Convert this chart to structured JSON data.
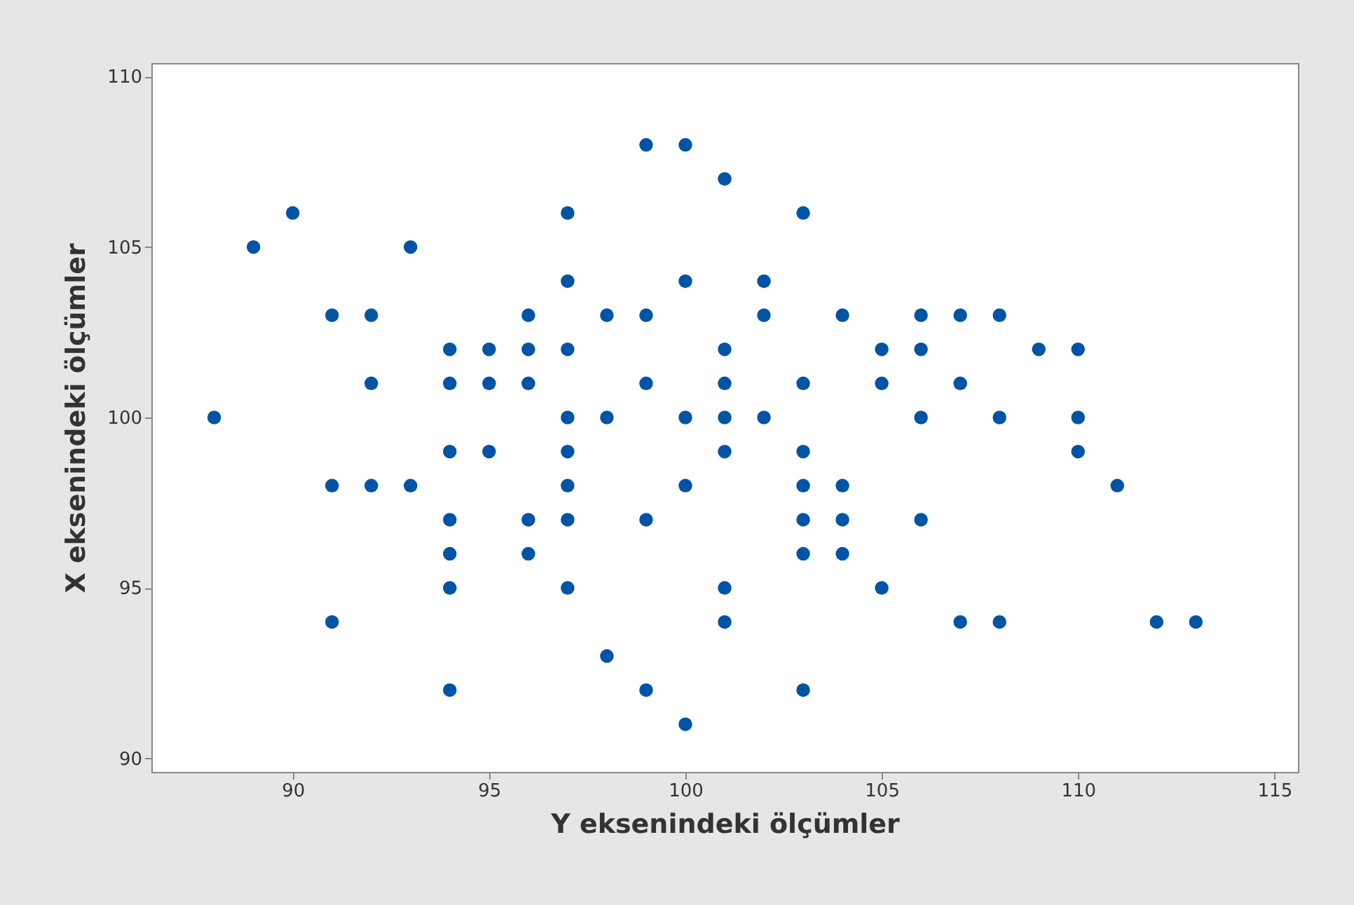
{
  "chart_data": {
    "type": "scatter",
    "xlabel": "Y eksenindeki ölçümler",
    "ylabel": "X eksenindeki ölçümler",
    "xlim": [
      86.4,
      115.6
    ],
    "xticks": [
      90,
      95,
      100,
      105,
      110,
      115
    ],
    "ylim": [
      89.6,
      110.4
    ],
    "yticks": [
      90,
      95,
      100,
      105,
      110
    ],
    "grid": false,
    "marker": "circle",
    "series": [
      {
        "color": "#0054a6",
        "x": [
          88,
          89,
          90,
          91,
          91,
          91,
          92,
          92,
          92,
          93,
          93,
          94,
          94,
          94,
          94,
          94,
          94,
          94,
          95,
          95,
          95,
          96,
          96,
          96,
          96,
          96,
          97,
          97,
          97,
          97,
          97,
          97,
          97,
          97,
          98,
          98,
          98,
          99,
          99,
          99,
          99,
          99,
          100,
          100,
          100,
          100,
          100,
          101,
          101,
          101,
          101,
          101,
          101,
          101,
          102,
          102,
          102,
          103,
          103,
          103,
          103,
          103,
          103,
          103,
          104,
          104,
          104,
          104,
          105,
          105,
          105,
          106,
          106,
          106,
          106,
          107,
          107,
          107,
          108,
          108,
          108,
          109,
          110,
          110,
          110,
          111,
          112,
          113
        ],
        "values": [
          100,
          105,
          106,
          103,
          98,
          94,
          103,
          101,
          98,
          105,
          98,
          102,
          101,
          99,
          97,
          96,
          95,
          92,
          102,
          101,
          99,
          103,
          102,
          101,
          97,
          96,
          106,
          104,
          102,
          100,
          99,
          98,
          97,
          95,
          103,
          100,
          93,
          108,
          103,
          101,
          97,
          92,
          108,
          104,
          100,
          98,
          91,
          107,
          102,
          101,
          100,
          99,
          95,
          94,
          104,
          103,
          100,
          106,
          101,
          99,
          98,
          97,
          96,
          92,
          103,
          98,
          97,
          96,
          102,
          101,
          95,
          103,
          102,
          100,
          97,
          103,
          101,
          94,
          103,
          100,
          94,
          102,
          102,
          100,
          99,
          98,
          94,
          94
        ]
      }
    ]
  }
}
